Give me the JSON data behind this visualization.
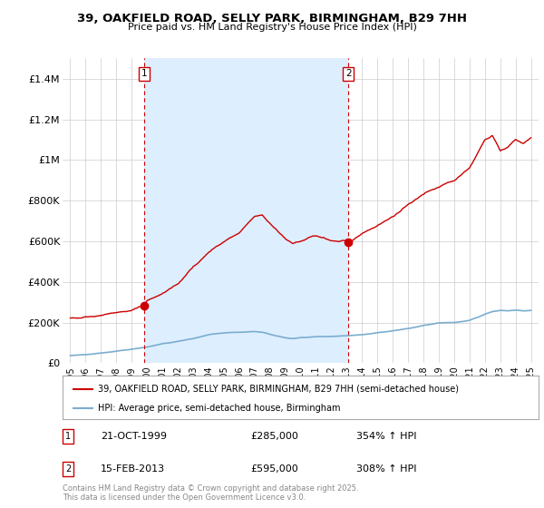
{
  "title": "39, OAKFIELD ROAD, SELLY PARK, BIRMINGHAM, B29 7HH",
  "subtitle": "Price paid vs. HM Land Registry's House Price Index (HPI)",
  "footnote": "Contains HM Land Registry data © Crown copyright and database right 2025.\nThis data is licensed under the Open Government Licence v3.0.",
  "legend_line1": "39, OAKFIELD ROAD, SELLY PARK, BIRMINGHAM, B29 7HH (semi-detached house)",
  "legend_line2": "HPI: Average price, semi-detached house, Birmingham",
  "sale1_date": "21-OCT-1999",
  "sale1_price": 285000,
  "sale1_hpi_pct": "354% ↑ HPI",
  "sale2_date": "15-FEB-2013",
  "sale2_price": 595000,
  "sale2_hpi_pct": "308% ↑ HPI",
  "sale1_x": 1999.8,
  "sale2_x": 2013.12,
  "ylim": [
    0,
    1500000
  ],
  "yticks": [
    0,
    200000,
    400000,
    600000,
    800000,
    1000000,
    1200000,
    1400000
  ],
  "ytick_labels": [
    "£0",
    "£200K",
    "£400K",
    "£600K",
    "£800K",
    "£1M",
    "£1.2M",
    "£1.4M"
  ],
  "xlim": [
    1994.5,
    2025.5
  ],
  "red_color": "#cc0000",
  "blue_color": "#7aadcf",
  "shade_color": "#ddeeff",
  "dashed_color": "#cc0000",
  "background_color": "#ffffff",
  "grid_color": "#cccccc",
  "red_line_knots_x": [
    1995,
    1996,
    1997,
    1998,
    1999,
    1999.8,
    2000,
    2001,
    2002,
    2003,
    2004,
    2005,
    2006,
    2007,
    2007.5,
    2008,
    2009,
    2009.5,
    2010,
    2010.5,
    2011,
    2011.5,
    2012,
    2012.5,
    2013,
    2013.12,
    2013.5,
    2014,
    2015,
    2016,
    2017,
    2018,
    2019,
    2020,
    2021,
    2022,
    2022.5,
    2023,
    2023.5,
    2024,
    2024.5,
    2025
  ],
  "red_line_knots_y": [
    220000,
    230000,
    235000,
    250000,
    260000,
    285000,
    310000,
    340000,
    390000,
    470000,
    545000,
    600000,
    640000,
    720000,
    730000,
    690000,
    610000,
    590000,
    600000,
    615000,
    625000,
    620000,
    605000,
    600000,
    605000,
    595000,
    610000,
    640000,
    680000,
    720000,
    780000,
    830000,
    870000,
    900000,
    960000,
    1100000,
    1120000,
    1050000,
    1060000,
    1100000,
    1080000,
    1110000
  ],
  "blue_line_knots_x": [
    1995,
    1996,
    1997,
    1998,
    1999,
    2000,
    2001,
    2002,
    2003,
    2004,
    2005,
    2006,
    2007,
    2007.5,
    2008,
    2008.5,
    2009,
    2009.5,
    2010,
    2011,
    2012,
    2013,
    2013.12,
    2014,
    2015,
    2016,
    2017,
    2018,
    2019,
    2020,
    2021,
    2022,
    2022.5,
    2023,
    2023.5,
    2024,
    2024.5,
    2025
  ],
  "blue_line_knots_y": [
    38000,
    42000,
    50000,
    58000,
    68000,
    80000,
    95000,
    108000,
    120000,
    140000,
    150000,
    152000,
    155000,
    152000,
    143000,
    133000,
    125000,
    122000,
    126000,
    130000,
    132000,
    135000,
    136000,
    140000,
    150000,
    160000,
    170000,
    185000,
    198000,
    200000,
    210000,
    240000,
    255000,
    260000,
    258000,
    262000,
    258000,
    260000
  ]
}
